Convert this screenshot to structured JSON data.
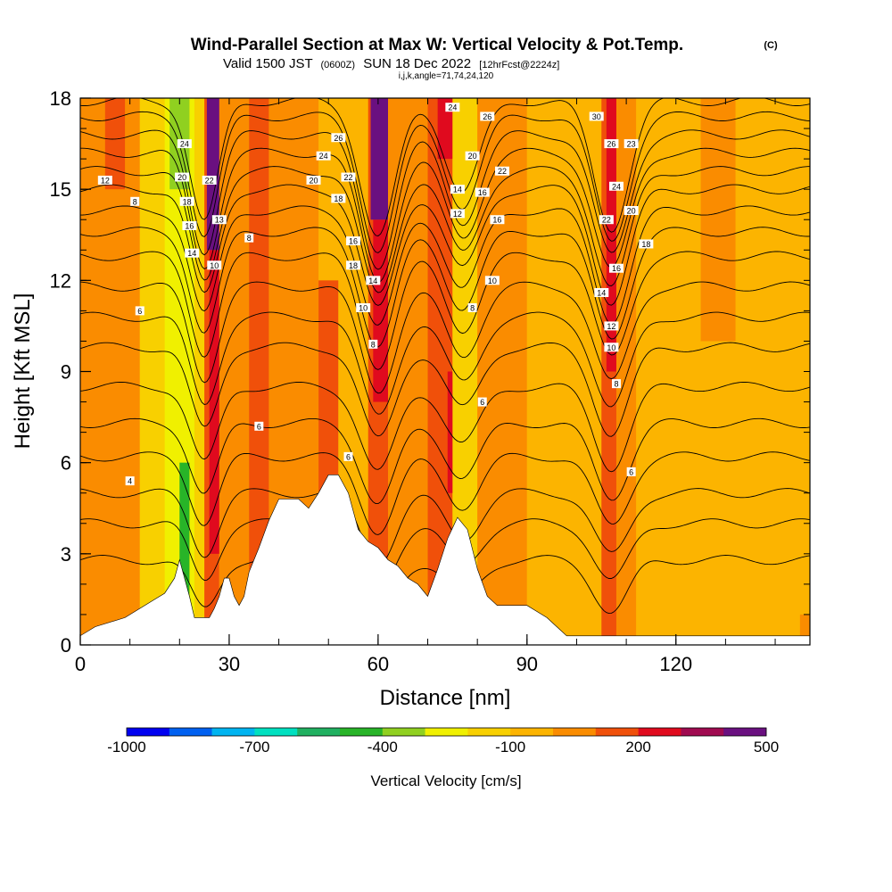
{
  "title": {
    "main": "Wind-Parallel Section at Max W: Vertical Velocity & Pot.Temp.",
    "corner": "(C)",
    "valid_prefix": "Valid 1500 JST",
    "valid_utc": "(0600Z)",
    "valid_suffix": "SUN 18 Dec 2022",
    "forecast": "[12hrFcst@2224z]",
    "indices": "i,j,k,angle=71,74,24,120"
  },
  "chart_data": {
    "type": "heatmap",
    "xlabel": "Distance [nm]",
    "ylabel": "Height [Kft MSL]",
    "xlim": [
      0,
      147
    ],
    "ylim": [
      0,
      18
    ],
    "x_ticks": [
      0,
      30,
      60,
      90,
      120
    ],
    "y_ticks": [
      0,
      3,
      6,
      9,
      12,
      15,
      18
    ],
    "colorbar": {
      "label": "Vertical Velocity [cm/s]",
      "tick_labels": [
        "-1000",
        "-700",
        "-400",
        "-100",
        "200",
        "500"
      ],
      "tick_positions": [
        0,
        3,
        6,
        9,
        12,
        15
      ],
      "colors": [
        "#0000f0",
        "#0060f0",
        "#00b4f0",
        "#00e0c0",
        "#20b060",
        "#28b428",
        "#90d020",
        "#f0f000",
        "#f8d000",
        "#fcb400",
        "#fa8c00",
        "#f0500a",
        "#e00a1e",
        "#a00a50",
        "#6a1080"
      ]
    },
    "background_color": "#fcb400",
    "bands": [
      {
        "x0": 0,
        "x1": 12,
        "color": "#fa8c00"
      },
      {
        "x0": 5,
        "x1": 9,
        "color": "#f0500a",
        "ymin": 15,
        "ymax": 18
      },
      {
        "x0": 12,
        "x1": 17,
        "color": "#f8d000"
      },
      {
        "x0": 17,
        "x1": 23,
        "color": "#f0f000"
      },
      {
        "x0": 18,
        "x1": 22,
        "color": "#90d020",
        "ymin": 15,
        "ymax": 18
      },
      {
        "x0": 20,
        "x1": 22,
        "color": "#28b428",
        "ymin": 0.8,
        "ymax": 6
      },
      {
        "x0": 23,
        "x1": 25,
        "color": "#f8d000"
      },
      {
        "x0": 25,
        "x1": 28,
        "color": "#f0500a"
      },
      {
        "x0": 26,
        "x1": 29,
        "color": "#e00a1e",
        "ymin": 3,
        "ymax": 13
      },
      {
        "x0": 25.5,
        "x1": 28.5,
        "color": "#6a1080",
        "ymin": 13,
        "ymax": 18
      },
      {
        "x0": 28,
        "x1": 34,
        "color": "#fa8c00"
      },
      {
        "x0": 34,
        "x1": 38,
        "color": "#f0500a"
      },
      {
        "x0": 38,
        "x1": 48,
        "color": "#fa8c00"
      },
      {
        "x0": 48,
        "x1": 52,
        "color": "#f0500a",
        "ymin": 4,
        "ymax": 12
      },
      {
        "x0": 52,
        "x1": 58,
        "color": "#fcb400"
      },
      {
        "x0": 58,
        "x1": 62,
        "color": "#f0500a"
      },
      {
        "x0": 59,
        "x1": 63,
        "color": "#e00a1e",
        "ymin": 8,
        "ymax": 14
      },
      {
        "x0": 58.5,
        "x1": 62.5,
        "color": "#6a1080",
        "ymin": 14,
        "ymax": 18
      },
      {
        "x0": 62,
        "x1": 70,
        "color": "#fa8c00"
      },
      {
        "x0": 70,
        "x1": 75,
        "color": "#f0500a"
      },
      {
        "x0": 74,
        "x1": 76,
        "color": "#e00a1e",
        "ymin": 5,
        "ymax": 9
      },
      {
        "x0": 72,
        "x1": 75,
        "color": "#e00a1e",
        "ymin": 16,
        "ymax": 18
      },
      {
        "x0": 75,
        "x1": 80,
        "color": "#f8d000"
      },
      {
        "x0": 80,
        "x1": 90,
        "color": "#fa8c00"
      },
      {
        "x0": 90,
        "x1": 105,
        "color": "#fcb400"
      },
      {
        "x0": 105,
        "x1": 108,
        "color": "#f0500a"
      },
      {
        "x0": 106,
        "x1": 108,
        "color": "#e00a1e",
        "ymin": 9,
        "ymax": 18
      },
      {
        "x0": 108,
        "x1": 112,
        "color": "#fa8c00"
      },
      {
        "x0": 112,
        "x1": 140,
        "color": "#fcb400"
      },
      {
        "x0": 125,
        "x1": 132,
        "color": "#fa8c00",
        "ymin": 10,
        "ymax": 18
      },
      {
        "x0": 145,
        "x1": 147,
        "color": "#fa8c00",
        "ymin": 0,
        "ymax": 1
      }
    ],
    "terrain": {
      "x": [
        0,
        3,
        9,
        12,
        15,
        17,
        19,
        20,
        22,
        23,
        24,
        26,
        27,
        28,
        29,
        30,
        31,
        32,
        33,
        34,
        36,
        38,
        40,
        42,
        44,
        46,
        48,
        50,
        52,
        54,
        56,
        58,
        60,
        62,
        64,
        66,
        68,
        70,
        72,
        74,
        76,
        78,
        80,
        82,
        84,
        86,
        88,
        90,
        92,
        94,
        96,
        98,
        100,
        101,
        147
      ],
      "y": [
        0.3,
        0.6,
        0.9,
        1.2,
        1.5,
        1.7,
        2.2,
        2.8,
        1.6,
        0.9,
        0.9,
        0.9,
        1.2,
        1.6,
        2.2,
        2.2,
        1.6,
        1.3,
        1.6,
        2.4,
        3.2,
        4.1,
        4.8,
        4.8,
        4.8,
        4.5,
        5.0,
        5.6,
        5.6,
        5.0,
        3.8,
        3.4,
        3.2,
        2.8,
        2.6,
        2.2,
        2.0,
        1.6,
        2.5,
        3.5,
        4.2,
        3.8,
        2.5,
        1.6,
        1.3,
        1.3,
        1.3,
        1.3,
        1.1,
        0.9,
        0.6,
        0.3,
        0.3,
        0.3,
        0.3
      ]
    },
    "theta_contours": {
      "base": [
        2.8,
        4.0,
        5.0,
        6.2,
        7.3,
        8.5,
        9.8,
        10.8,
        11.8,
        12.8,
        13.6,
        14.3,
        15.0,
        15.6,
        16.2,
        16.8,
        17.4,
        17.9
      ],
      "dips": [
        {
          "x": 25,
          "width": 4,
          "depth": 4.0
        },
        {
          "x": 60,
          "width": 5,
          "depth": 4.5
        },
        {
          "x": 77,
          "width": 5,
          "depth": 3.0
        },
        {
          "x": 107,
          "width": 5,
          "depth": 4.2
        }
      ]
    },
    "contour_labels": [
      {
        "text": "4",
        "x": 10,
        "y": 5.4
      },
      {
        "text": "6",
        "x": 12,
        "y": 11.0
      },
      {
        "text": "8",
        "x": 11,
        "y": 14.6
      },
      {
        "text": "12",
        "x": 5,
        "y": 15.3
      },
      {
        "text": "24",
        "x": 21,
        "y": 16.5
      },
      {
        "text": "20",
        "x": 20.5,
        "y": 15.4
      },
      {
        "text": "18",
        "x": 21.5,
        "y": 14.6
      },
      {
        "text": "16",
        "x": 22,
        "y": 13.8
      },
      {
        "text": "14",
        "x": 22.5,
        "y": 12.9
      },
      {
        "text": "22",
        "x": 26,
        "y": 15.3
      },
      {
        "text": "13",
        "x": 28,
        "y": 14.0
      },
      {
        "text": "10",
        "x": 27,
        "y": 12.5
      },
      {
        "text": "8",
        "x": 34,
        "y": 13.4
      },
      {
        "text": "6",
        "x": 36,
        "y": 7.2
      },
      {
        "text": "26",
        "x": 52,
        "y": 16.7
      },
      {
        "text": "24",
        "x": 49,
        "y": 16.1
      },
      {
        "text": "20",
        "x": 47,
        "y": 15.3
      },
      {
        "text": "18",
        "x": 52,
        "y": 14.7
      },
      {
        "text": "22",
        "x": 54,
        "y": 15.4
      },
      {
        "text": "16",
        "x": 55,
        "y": 13.3
      },
      {
        "text": "18",
        "x": 55,
        "y": 12.5
      },
      {
        "text": "14",
        "x": 59,
        "y": 12.0
      },
      {
        "text": "10",
        "x": 57,
        "y": 11.1
      },
      {
        "text": "8",
        "x": 59,
        "y": 9.9
      },
      {
        "text": "6",
        "x": 54,
        "y": 6.2
      },
      {
        "text": "24",
        "x": 75,
        "y": 17.7
      },
      {
        "text": "26",
        "x": 82,
        "y": 17.4
      },
      {
        "text": "20",
        "x": 79,
        "y": 16.1
      },
      {
        "text": "22",
        "x": 85,
        "y": 15.6
      },
      {
        "text": "14",
        "x": 76,
        "y": 15.0
      },
      {
        "text": "16",
        "x": 81,
        "y": 14.9
      },
      {
        "text": "12",
        "x": 76,
        "y": 14.2
      },
      {
        "text": "16",
        "x": 84,
        "y": 14.0
      },
      {
        "text": "10",
        "x": 83,
        "y": 12.0
      },
      {
        "text": "8",
        "x": 79,
        "y": 11.1
      },
      {
        "text": "6",
        "x": 81,
        "y": 8.0
      },
      {
        "text": "30",
        "x": 104,
        "y": 17.4
      },
      {
        "text": "26",
        "x": 107,
        "y": 16.5
      },
      {
        "text": "23",
        "x": 111,
        "y": 16.5
      },
      {
        "text": "24",
        "x": 108,
        "y": 15.1
      },
      {
        "text": "20",
        "x": 111,
        "y": 14.3
      },
      {
        "text": "22",
        "x": 106,
        "y": 14.0
      },
      {
        "text": "18",
        "x": 114,
        "y": 13.2
      },
      {
        "text": "16",
        "x": 108,
        "y": 12.4
      },
      {
        "text": "14",
        "x": 105,
        "y": 11.6
      },
      {
        "text": "12",
        "x": 107,
        "y": 10.5
      },
      {
        "text": "10",
        "x": 107,
        "y": 9.8
      },
      {
        "text": "8",
        "x": 108,
        "y": 8.6
      },
      {
        "text": "6",
        "x": 111,
        "y": 5.7
      }
    ]
  }
}
